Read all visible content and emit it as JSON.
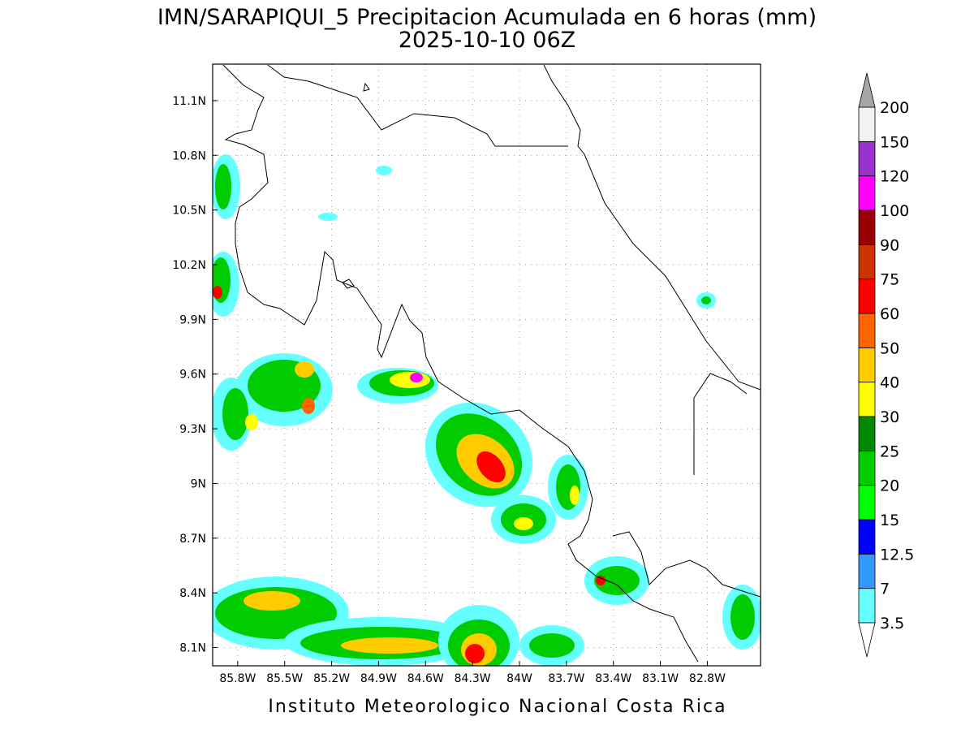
{
  "map": {
    "title": "IMN/SARAPIQUI_5 Precipitacion Acumulada en 6 horas (mm)",
    "subtitle": "2025-10-10 06Z",
    "footer": "Instituto Meteorologico Nacional Costa Rica",
    "xlim": [
      -85.96,
      -82.46
    ],
    "ylim": [
      8.0,
      11.3
    ],
    "grid": true,
    "xticks": [
      {
        "value": -85.8,
        "label": "85.8W"
      },
      {
        "value": -85.5,
        "label": "85.5W"
      },
      {
        "value": -85.2,
        "label": "85.2W"
      },
      {
        "value": -84.9,
        "label": "84.9W"
      },
      {
        "value": -84.6,
        "label": "84.6W"
      },
      {
        "value": -84.3,
        "label": "84.3W"
      },
      {
        "value": -84,
        "label": "84W"
      },
      {
        "value": -83.7,
        "label": "83.7W"
      },
      {
        "value": -83.4,
        "label": "83.4W"
      },
      {
        "value": -83.1,
        "label": "83.1W"
      },
      {
        "value": -82.8,
        "label": "82.8W"
      }
    ],
    "yticks": [
      {
        "value": 8.1,
        "label": "8.1N"
      },
      {
        "value": 8.4,
        "label": "8.4N"
      },
      {
        "value": 8.7,
        "label": "8.7N"
      },
      {
        "value": 9,
        "label": "9N"
      },
      {
        "value": 9.3,
        "label": "9.3N"
      },
      {
        "value": 9.6,
        "label": "9.6N"
      },
      {
        "value": 9.9,
        "label": "9.9N"
      },
      {
        "value": 10.2,
        "label": "10.2N"
      },
      {
        "value": 10.5,
        "label": "10.5N"
      },
      {
        "value": 10.8,
        "label": "10.8N"
      },
      {
        "value": 11.1,
        "label": "11.1N"
      }
    ],
    "colorbar": {
      "levels": [
        3.5,
        7,
        12.5,
        15,
        20,
        25,
        30,
        40,
        50,
        60,
        75,
        90,
        100,
        120,
        150,
        200
      ],
      "colors": [
        "#66ffff",
        "#3399ff",
        "#0000ff",
        "#00ff00",
        "#00cc00",
        "#008800",
        "#ffff00",
        "#ffcc00",
        "#ff6600",
        "#ff0000",
        "#cc3300",
        "#990000",
        "#ff00ff",
        "#9933cc",
        "#f2f2f2"
      ],
      "under_color": "#ffffff",
      "over_color": "#a6a6a6"
    }
  }
}
